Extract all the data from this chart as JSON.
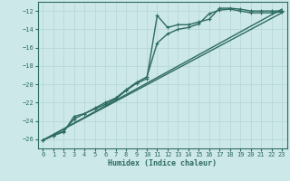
{
  "xlabel": "Humidex (Indice chaleur)",
  "xlim": [
    -0.5,
    23.5
  ],
  "ylim": [
    -27,
    -11
  ],
  "yticks": [
    -26,
    -24,
    -22,
    -20,
    -18,
    -16,
    -14,
    -12
  ],
  "xticks": [
    0,
    1,
    2,
    3,
    4,
    5,
    6,
    7,
    8,
    9,
    10,
    11,
    12,
    13,
    14,
    15,
    16,
    17,
    18,
    19,
    20,
    21,
    22,
    23
  ],
  "bg_color": "#cde8e8",
  "grid_color": "#b0d4d4",
  "line_color": "#2d6b60",
  "series": [
    {
      "x": [
        0,
        1,
        2,
        3,
        4,
        5,
        6,
        7,
        8,
        9,
        10,
        11,
        12,
        13,
        14,
        15,
        16,
        17,
        18,
        19,
        20,
        21,
        22,
        23
      ],
      "y": [
        -26.1,
        -25.6,
        -25.2,
        -23.5,
        -23.2,
        -22.7,
        -22.2,
        -21.6,
        -20.7,
        -19.9,
        -19.4,
        -12.5,
        -13.8,
        -13.5,
        -13.5,
        -13.2,
        -12.9,
        -11.7,
        -11.7,
        -11.8,
        -12.0,
        -12.0,
        -12.0,
        -12.0
      ],
      "marker": true,
      "markersize": 2.5,
      "linewidth": 1.0
    },
    {
      "x": [
        0,
        1,
        2,
        3,
        4,
        5,
        6,
        7,
        8,
        9,
        10,
        11,
        12,
        13,
        14,
        15,
        16,
        17,
        18,
        19,
        20,
        21,
        22,
        23
      ],
      "y": [
        -26.1,
        -25.6,
        -25.1,
        -23.8,
        -23.2,
        -22.6,
        -22.0,
        -21.5,
        -20.6,
        -19.8,
        -19.2,
        -15.5,
        -14.5,
        -14.0,
        -13.8,
        -13.4,
        -12.3,
        -11.9,
        -11.8,
        -12.0,
        -12.2,
        -12.2,
        -12.2,
        -12.1
      ],
      "marker": true,
      "markersize": 2.5,
      "linewidth": 1.0
    },
    {
      "x": [
        0,
        23
      ],
      "y": [
        -26.1,
        -11.8
      ],
      "marker": false,
      "linewidth": 1.0
    },
    {
      "x": [
        0,
        23
      ],
      "y": [
        -26.1,
        -12.2
      ],
      "marker": false,
      "linewidth": 1.0
    }
  ]
}
